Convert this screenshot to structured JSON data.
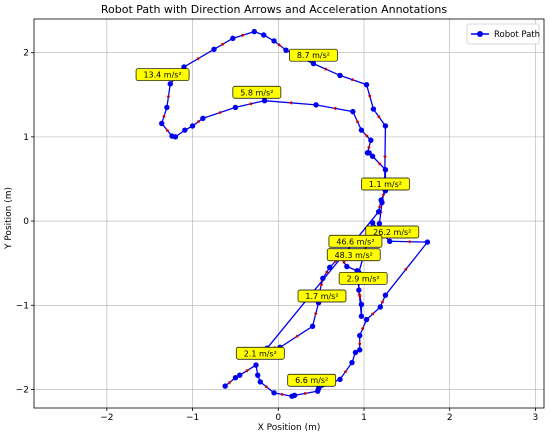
{
  "chart_data": {
    "type": "line",
    "title": "Robot Path with Direction Arrows and Acceleration Annotations",
    "xlabel": "X Position (m)",
    "ylabel": "Y Position (m)",
    "xlim": [
      -2.85,
      3.1
    ],
    "ylim": [
      -2.22,
      2.4
    ],
    "x_ticks": [
      -2,
      -1,
      0,
      1,
      2,
      3
    ],
    "x_tick_labels": [
      "−2",
      "−1",
      "0",
      "1",
      "2",
      "3"
    ],
    "y_ticks": [
      -2,
      -1,
      0,
      1,
      2
    ],
    "y_tick_labels": [
      "−2",
      "−1",
      "0",
      "1",
      "2"
    ],
    "grid": true,
    "legend_position": "top-right",
    "colors": {
      "line": "#0000ee",
      "marker": "#0000ee",
      "arrow": "#cc0000",
      "annotation_fill": "#ffff00",
      "grid": "#b0b0b0"
    },
    "series": [
      {
        "name": "Robot Path",
        "x": [
          -0.62,
          -0.5,
          -0.45,
          -0.26,
          -0.24,
          -0.21,
          -0.05,
          0.16,
          0.19,
          0.46,
          0.47,
          0.72,
          0.86,
          0.9,
          0.95,
          0.95,
          1.03,
          1.19,
          1.25,
          1.74,
          1.3,
          1.1,
          0.94,
          0.94,
          0.97,
          0.97,
          0.92,
          0.8,
          0.72,
          0.6,
          0.52,
          0.48,
          0.47,
          0.4,
          0.02,
          -0.13,
          1.17,
          1.2,
          1.25,
          1.25,
          1.1,
          1.06,
          1.04,
          1.08,
          0.97,
          0.87,
          0.44,
          -0.16,
          -0.5,
          -0.88,
          -1.0,
          -1.09,
          -1.2,
          -1.24,
          -1.36,
          -1.3,
          -1.26,
          -1.1,
          -0.75,
          -0.53,
          -0.28,
          -0.17,
          -0.05,
          0.09,
          0.41,
          0.72,
          1.03,
          1.11,
          1.25,
          1.24,
          1.21,
          1.18
        ],
        "y": [
          -1.96,
          -1.86,
          -1.83,
          -1.71,
          -1.83,
          -1.91,
          -2.04,
          -2.08,
          -2.07,
          -2.02,
          -1.99,
          -1.88,
          -1.68,
          -1.56,
          -1.53,
          -1.36,
          -1.17,
          -1.02,
          -0.88,
          -0.25,
          -0.24,
          -0.02,
          -0.61,
          -0.82,
          -0.99,
          -1.13,
          -0.59,
          -0.54,
          -0.42,
          -0.55,
          -0.68,
          -0.85,
          -0.97,
          -1.25,
          -1.5,
          -1.51,
          0.11,
          0.25,
          0.36,
          0.61,
          0.77,
          0.81,
          0.81,
          0.96,
          1.08,
          1.3,
          1.38,
          1.43,
          1.35,
          1.22,
          1.13,
          1.08,
          1.0,
          1.01,
          1.16,
          1.35,
          1.63,
          1.83,
          2.04,
          2.17,
          2.25,
          2.21,
          2.14,
          2.03,
          1.87,
          1.73,
          1.62,
          1.33,
          1.13,
          0.38,
          0.22,
          -0.03
        ]
      }
    ],
    "annotations": [
      {
        "text": "13.4 m/s²",
        "x": -1.35,
        "y": 1.74
      },
      {
        "text": "8.7 m/s²",
        "x": 0.41,
        "y": 1.97
      },
      {
        "text": "5.8 m/s²",
        "x": -0.25,
        "y": 1.53
      },
      {
        "text": "1.1 m/s²",
        "x": 1.25,
        "y": 0.44
      },
      {
        "text": "26.2 m/s²",
        "x": 1.33,
        "y": -0.13
      },
      {
        "text": "46.6 m/s²",
        "x": 0.9,
        "y": -0.24
      },
      {
        "text": "48.3 m/s²",
        "x": 0.88,
        "y": -0.4
      },
      {
        "text": "2.9 m/s²",
        "x": 0.99,
        "y": -0.68
      },
      {
        "text": "1.7 m/s²",
        "x": 0.51,
        "y": -0.89
      },
      {
        "text": "2.1 m/s²",
        "x": -0.21,
        "y": -1.57
      },
      {
        "text": "6.6 m/s²",
        "x": 0.39,
        "y": -1.89
      }
    ]
  }
}
